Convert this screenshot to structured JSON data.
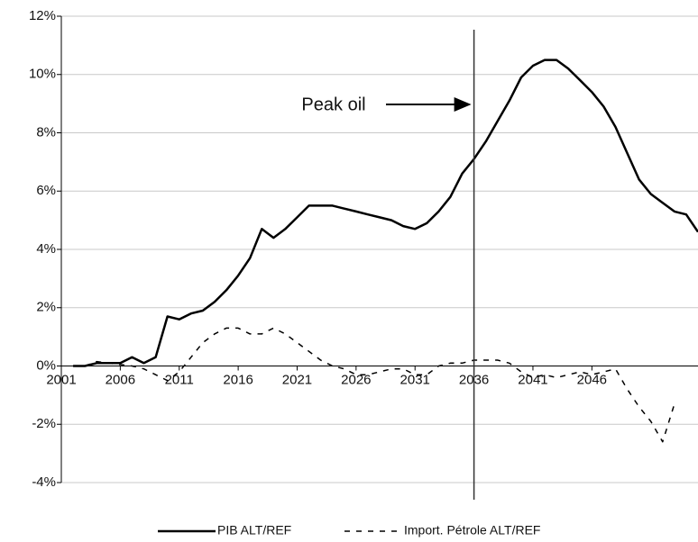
{
  "chart_data": {
    "type": "line",
    "x": [
      2001,
      2002,
      2003,
      2004,
      2005,
      2006,
      2007,
      2008,
      2009,
      2010,
      2011,
      2012,
      2013,
      2014,
      2015,
      2016,
      2017,
      2018,
      2019,
      2020,
      2021,
      2022,
      2023,
      2024,
      2025,
      2026,
      2027,
      2028,
      2029,
      2030,
      2031,
      2032,
      2033,
      2034,
      2035,
      2036,
      2037,
      2038,
      2039,
      2040,
      2041,
      2042,
      2043,
      2044,
      2045,
      2046,
      2047,
      2048,
      2049,
      2050,
      2051,
      2052,
      2053,
      2054,
      2055
    ],
    "series": [
      {
        "name": "PIB ALT/REF",
        "color": "#000000",
        "dash": false,
        "values": [
          null,
          0,
          0,
          0.1,
          0.1,
          0.1,
          0.3,
          0.1,
          0.3,
          1.7,
          1.6,
          1.8,
          1.9,
          2.2,
          2.6,
          3.1,
          3.7,
          4.7,
          4.4,
          4.7,
          5.1,
          5.5,
          5.5,
          5.5,
          5.4,
          5.3,
          5.2,
          5.1,
          5.0,
          4.8,
          4.7,
          4.9,
          5.3,
          5.8,
          6.6,
          7.1,
          7.7,
          8.4,
          9.1,
          9.9,
          10.3,
          10.5,
          10.5,
          10.2,
          9.8,
          9.4,
          8.9,
          8.2,
          7.3,
          6.4,
          5.9,
          5.6,
          5.3,
          5.2,
          4.6
        ]
      },
      {
        "name": "Import. Pétrole ALT/REF",
        "color": "#000000",
        "dash": true,
        "values": [
          null,
          0,
          0,
          0.15,
          0.1,
          0.05,
          0,
          -0.1,
          -0.3,
          -0.5,
          -0.2,
          0.3,
          0.8,
          1.1,
          1.3,
          1.3,
          1.1,
          1.1,
          1.3,
          1.1,
          0.8,
          0.5,
          0.2,
          0,
          -0.1,
          -0.3,
          -0.3,
          -0.2,
          -0.1,
          -0.1,
          -0.3,
          -0.3,
          0,
          0.1,
          0.1,
          0.2,
          0.2,
          0.2,
          0.1,
          -0.2,
          -0.4,
          -0.3,
          -0.4,
          -0.3,
          -0.2,
          -0.3,
          -0.2,
          -0.1,
          -0.8,
          -1.4,
          -1.9,
          -2.6,
          -1.3,
          null,
          null
        ]
      }
    ],
    "xlim": [
      2001,
      2055
    ],
    "xticks": [
      2001,
      2006,
      2011,
      2016,
      2021,
      2026,
      2031,
      2036,
      2041,
      2046
    ],
    "ylim": [
      -4,
      12
    ],
    "yticks": [
      {
        "value": -4,
        "label": "-4%"
      },
      {
        "value": -2,
        "label": "-2%"
      },
      {
        "value": 0,
        "label": "0%"
      },
      {
        "value": 2,
        "label": "2%"
      },
      {
        "value": 4,
        "label": "4%"
      },
      {
        "value": 6,
        "label": "6%"
      },
      {
        "value": 8,
        "label": "8%"
      },
      {
        "value": 10,
        "label": "10%"
      },
      {
        "value": 12,
        "label": "12%"
      }
    ],
    "grid": true,
    "annotation": {
      "text": "Peak oil",
      "x": 2036
    }
  }
}
